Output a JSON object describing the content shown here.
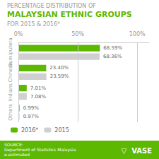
{
  "chart_data": {
    "type": "bar",
    "orientation": "horizontal",
    "title": [
      "PERCENTAGE DISTRIBUTION OF",
      "MALAYSIAN ETHNIC GROUPS",
      "FOR 2015 & 2016*"
    ],
    "categories": [
      "Bumiputera",
      "Chinese",
      "Indians",
      "Others"
    ],
    "series": [
      {
        "name": "2016*",
        "color": "#5cb800",
        "values": [
          68.59,
          23.4,
          7.01,
          0.99
        ],
        "value_labels": [
          "68.59%",
          "23.40%",
          "7.01%",
          "0.99%"
        ]
      },
      {
        "name": "2015",
        "color": "#d0d0d0",
        "values": [
          68.36,
          23.59,
          7.08,
          0.97
        ],
        "value_labels": [
          "68.36%",
          "23.59%",
          "7.08%",
          "0.97%"
        ]
      }
    ],
    "xlim": [
      0,
      110
    ],
    "xticks": [
      {
        "value": 0,
        "label": "0%"
      },
      {
        "value": 50,
        "label": "50%"
      },
      {
        "value": 100,
        "label": "100%"
      }
    ],
    "grid": true,
    "legend": "lower left",
    "data_labels": true,
    "annotations": [
      "SOURCE:\nDepartment of Statistics Malaysia\ne-estimated",
      "▽  VASE"
    ]
  }
}
